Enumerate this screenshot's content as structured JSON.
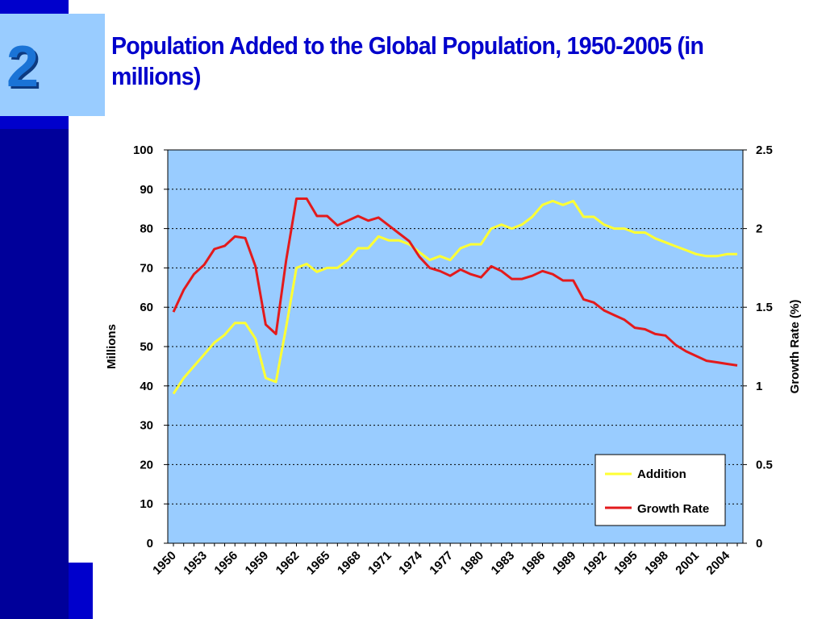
{
  "slide": {
    "number": "2",
    "title": "Population Added to the Global Population, 1950-2005 (in millions)"
  },
  "colors": {
    "sidebar": "#00009a",
    "sidebar_accent": "#0000cc",
    "title": "#0000cc",
    "plot_bg": "#99ccff",
    "addition": "#ffff33",
    "growth_rate": "#e31a1c"
  },
  "chart_data": {
    "type": "line",
    "title": "",
    "ylabel": "Millions",
    "y2label": "Growth Rate (%)",
    "xlabel": "",
    "ylim": [
      0,
      100
    ],
    "y2lim": [
      0,
      2.5
    ],
    "yticks": [
      0,
      10,
      20,
      30,
      40,
      50,
      60,
      70,
      80,
      90,
      100
    ],
    "y2ticks": [
      "0",
      "0.5",
      "1",
      "1.5",
      "2",
      "2.5"
    ],
    "xtick_labels": [
      "1950",
      "1953",
      "1956",
      "1959",
      "1962",
      "1965",
      "1968",
      "1971",
      "1974",
      "1977",
      "1980",
      "1983",
      "1986",
      "1989",
      "1992",
      "1995",
      "1998",
      "2001",
      "2004"
    ],
    "grid": "horizontal dotted",
    "legend_position": "bottom-right",
    "x": [
      1950,
      1951,
      1952,
      1953,
      1954,
      1955,
      1956,
      1957,
      1958,
      1959,
      1960,
      1961,
      1962,
      1963,
      1964,
      1965,
      1966,
      1967,
      1968,
      1969,
      1970,
      1971,
      1972,
      1973,
      1974,
      1975,
      1976,
      1977,
      1978,
      1979,
      1980,
      1981,
      1982,
      1983,
      1984,
      1985,
      1986,
      1987,
      1988,
      1989,
      1990,
      1991,
      1992,
      1993,
      1994,
      1995,
      1996,
      1997,
      1998,
      1999,
      2000,
      2001,
      2002,
      2003,
      2004,
      2005
    ],
    "series": [
      {
        "name": "Addition",
        "axis": "left",
        "values": [
          38,
          42,
          45,
          48,
          51,
          53,
          56,
          56,
          52,
          42,
          41,
          55,
          70,
          71,
          69,
          70,
          70,
          72,
          75,
          75,
          78,
          77,
          77,
          76,
          74,
          72,
          73,
          72,
          75,
          76,
          76,
          80,
          81,
          80,
          81,
          83,
          86,
          87,
          86,
          87,
          83,
          83,
          81,
          80,
          80,
          79,
          79,
          77.5,
          76.5,
          75.5,
          74.5,
          73.5,
          73,
          73,
          73.5,
          73.5
        ]
      },
      {
        "name": "Growth Rate",
        "axis": "right",
        "values": [
          1.47,
          1.61,
          1.71,
          1.77,
          1.87,
          1.89,
          1.95,
          1.94,
          1.76,
          1.39,
          1.33,
          1.8,
          2.19,
          2.19,
          2.08,
          2.08,
          2.02,
          2.05,
          2.08,
          2.05,
          2.07,
          2.02,
          1.97,
          1.92,
          1.82,
          1.75,
          1.73,
          1.7,
          1.74,
          1.71,
          1.69,
          1.76,
          1.73,
          1.68,
          1.68,
          1.7,
          1.73,
          1.71,
          1.67,
          1.67,
          1.55,
          1.53,
          1.48,
          1.45,
          1.42,
          1.37,
          1.36,
          1.33,
          1.32,
          1.26,
          1.22,
          1.19,
          1.16,
          1.15,
          1.14,
          1.13
        ]
      }
    ]
  }
}
